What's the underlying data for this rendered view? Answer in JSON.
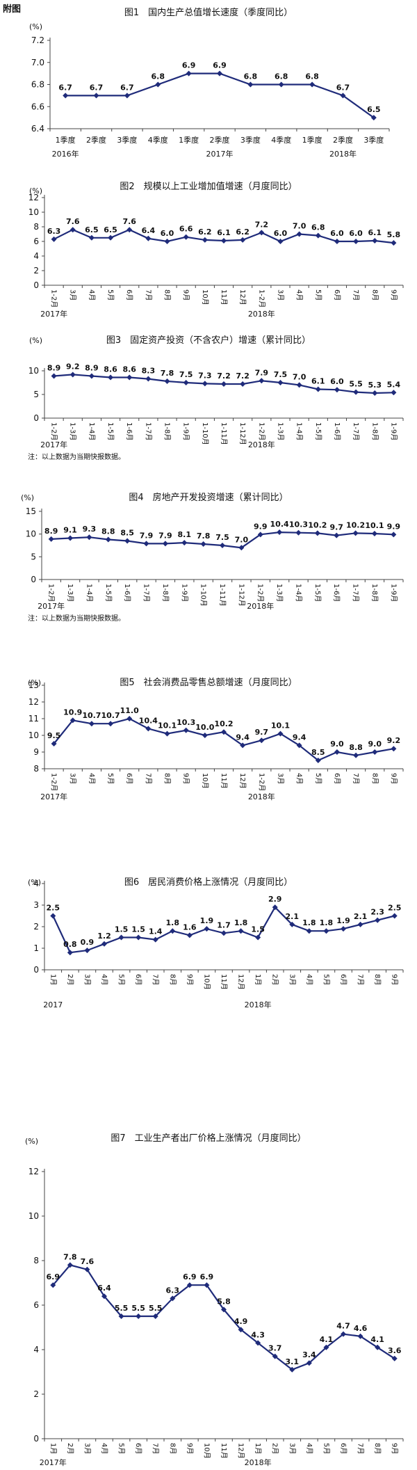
{
  "heading": "附图",
  "chart_data": [
    {
      "type": "line",
      "title": "图1　国内生产总值增长速度（季度同比）",
      "unit": "(%)",
      "categories": [
        "1季度",
        "2季度",
        "3季度",
        "4季度",
        "1季度",
        "2季度",
        "3季度",
        "4季度",
        "1季度",
        "2季度",
        "3季度"
      ],
      "x_tick_orientation": "horizontal",
      "years": [
        {
          "label": "2016年",
          "index": 0
        },
        {
          "label": "2017年",
          "index": 5
        },
        {
          "label": "2018年",
          "index": 9
        }
      ],
      "series": [
        {
          "values": [
            6.7,
            6.7,
            6.7,
            6.8,
            6.9,
            6.9,
            6.8,
            6.8,
            6.8,
            6.7,
            6.5
          ]
        }
      ],
      "value_labels": [
        "6.7",
        "6.7",
        "6.7",
        "6.8",
        "6.9",
        "6.9",
        "6.8",
        "6.8",
        "6.8",
        "6.7",
        "6.5"
      ],
      "ylim": [
        6.4,
        7.2
      ],
      "yticks": [
        "6.4",
        "6.6",
        "6.8",
        "7.0",
        "7.2"
      ],
      "marker": "diamond",
      "color": "#1f2b7a",
      "note": ""
    },
    {
      "type": "line",
      "title": "图2　规模以上工业增加值增速（月度同比）",
      "unit": "(%)",
      "categories": [
        "1-2月",
        "3月",
        "4月",
        "5月",
        "6月",
        "7月",
        "8月",
        "9月",
        "10月",
        "11月",
        "12月",
        "1-2月",
        "3月",
        "4月",
        "5月",
        "6月",
        "7月",
        "8月",
        "9月"
      ],
      "x_tick_orientation": "vertical",
      "years": [
        {
          "label": "2017年",
          "index": 0
        },
        {
          "label": "2018年",
          "index": 11
        }
      ],
      "series": [
        {
          "values": [
            6.3,
            7.6,
            6.5,
            6.5,
            7.6,
            6.4,
            6.0,
            6.6,
            6.2,
            6.1,
            6.2,
            7.2,
            6.0,
            7.0,
            6.8,
            6.0,
            6.0,
            6.1,
            5.8
          ]
        }
      ],
      "value_labels": [
        "6.3",
        "7.6",
        "6.5",
        "6.5",
        "7.6",
        "6.4",
        "6.0",
        "6.6",
        "6.2",
        "6.1",
        "6.2",
        "7.2",
        "6.0",
        "7.0",
        "6.8",
        "6.0",
        "6.0",
        "6.1",
        "5.8"
      ],
      "ylim": [
        0,
        12
      ],
      "yticks": [
        "0",
        "2",
        "4",
        "6",
        "8",
        "10",
        "12"
      ],
      "marker": "diamond",
      "color": "#1f2b7a",
      "note": ""
    },
    {
      "type": "line",
      "title": "图3　固定资产投资（不含农户）增速（累计同比）",
      "unit": "(%)",
      "categories": [
        "1-2月",
        "1-3月",
        "1-4月",
        "1-5月",
        "1-6月",
        "1-7月",
        "1-8月",
        "1-9月",
        "1-10月",
        "1-11月",
        "1-12月",
        "1-2月",
        "1-3月",
        "1-4月",
        "1-5月",
        "1-6月",
        "1-7月",
        "1-8月",
        "1-9月"
      ],
      "x_tick_orientation": "vertical",
      "years": [
        {
          "label": "2017年",
          "index": 0
        },
        {
          "label": "2018年",
          "index": 11
        }
      ],
      "series": [
        {
          "values": [
            8.9,
            9.2,
            8.9,
            8.6,
            8.6,
            8.3,
            7.8,
            7.5,
            7.3,
            7.2,
            7.2,
            7.9,
            7.5,
            7.0,
            6.1,
            6.0,
            5.5,
            5.3,
            5.4
          ]
        }
      ],
      "value_labels": [
        "8.9",
        "9.2",
        "8.9",
        "8.6",
        "8.6",
        "8.3",
        "7.8",
        "7.5",
        "7.3",
        "7.2",
        "7.2",
        "7.9",
        "7.5",
        "7.0",
        "6.1",
        "6.0",
        "5.5",
        "5.3",
        "5.4"
      ],
      "ylim": [
        0,
        10
      ],
      "yticks": [
        "0",
        "5",
        "10"
      ],
      "marker": "diamond",
      "color": "#1f2b7a",
      "note": "注：以上数据为当期快报数据。"
    },
    {
      "type": "line",
      "title": "图4　房地产开发投资增速（累计同比）",
      "unit": "(%)",
      "categories": [
        "1-2月",
        "1-3月",
        "1-4月",
        "1-5月",
        "1-6月",
        "1-7月",
        "1-8月",
        "1-9月",
        "1-10月",
        "1-11月",
        "1-12月",
        "1-2月",
        "1-3月",
        "1-4月",
        "1-5月",
        "1-6月",
        "1-7月",
        "1-8月",
        "1-9月"
      ],
      "x_tick_orientation": "vertical",
      "years": [
        {
          "label": "2017年",
          "index": 0
        },
        {
          "label": "2018年",
          "index": 11
        }
      ],
      "series": [
        {
          "values": [
            8.9,
            9.1,
            9.3,
            8.8,
            8.5,
            7.9,
            7.9,
            8.1,
            7.8,
            7.5,
            7.0,
            9.9,
            10.4,
            10.3,
            10.2,
            9.7,
            10.2,
            10.1,
            9.9
          ]
        }
      ],
      "value_labels": [
        "8.9",
        "9.1",
        "9.3",
        "8.8",
        "8.5",
        "7.9",
        "7.9",
        "8.1",
        "7.8",
        "7.5",
        "7.0",
        "9.9",
        "10.4",
        "10.3",
        "10.2",
        "9.7",
        "10.2",
        "10.1",
        "9.9"
      ],
      "ylim": [
        0,
        15
      ],
      "yticks": [
        "0",
        "5",
        "10",
        "15"
      ],
      "marker": "diamond",
      "color": "#1f2b7a",
      "note": "注：以上数据为当期快报数据。"
    },
    {
      "type": "line",
      "title": "图5　社会消费品零售总额增速（月度同比）",
      "unit": "(%)",
      "categories": [
        "1-2月",
        "3月",
        "4月",
        "5月",
        "6月",
        "7月",
        "8月",
        "9月",
        "10月",
        "11月",
        "12月",
        "1-2月",
        "3月",
        "4月",
        "5月",
        "6月",
        "7月",
        "8月",
        "9月"
      ],
      "x_tick_orientation": "vertical",
      "years": [
        {
          "label": "2017年",
          "index": 0
        },
        {
          "label": "2018年",
          "index": 11
        }
      ],
      "series": [
        {
          "values": [
            9.5,
            10.9,
            10.7,
            10.7,
            11.0,
            10.4,
            10.1,
            10.3,
            10.0,
            10.2,
            9.4,
            9.7,
            10.1,
            9.4,
            8.5,
            9.0,
            8.8,
            9.0,
            9.2
          ]
        }
      ],
      "value_labels": [
        "9.5",
        "10.9",
        "10.7",
        "10.7",
        "11.0",
        "10.4",
        "10.1",
        "10.3",
        "10.0",
        "10.2",
        "9.4",
        "9.7",
        "10.1",
        "9.4",
        "8.5",
        "9.0",
        "8.8",
        "9.0",
        "9.2"
      ],
      "ylim": [
        8,
        13
      ],
      "yticks": [
        "8",
        "9",
        "10",
        "11",
        "12",
        "13"
      ],
      "marker": "diamond",
      "color": "#1f2b7a",
      "note": ""
    },
    {
      "type": "line",
      "title": "图6　居民消费价格上涨情况（月度同比）",
      "unit": "(%)",
      "categories": [
        "1月",
        "2月",
        "3月",
        "4月",
        "5月",
        "6月",
        "7月",
        "8月",
        "9月",
        "10月",
        "11月",
        "12月",
        "1月",
        "2月",
        "3月",
        "4月",
        "5月",
        "6月",
        "7月",
        "8月",
        "9月"
      ],
      "x_tick_orientation": "vertical",
      "years": [
        {
          "label": "2017",
          "index": 0
        },
        {
          "label": "2018年",
          "index": 12
        }
      ],
      "series": [
        {
          "values": [
            2.5,
            0.8,
            0.9,
            1.2,
            1.5,
            1.5,
            1.4,
            1.8,
            1.6,
            1.9,
            1.7,
            1.8,
            1.5,
            2.9,
            2.1,
            1.8,
            1.8,
            1.9,
            2.1,
            2.3,
            2.5
          ]
        }
      ],
      "value_labels": [
        "2.5",
        "0.8",
        "0.9",
        "1.2",
        "1.5",
        "1.5",
        "1.4",
        "1.8",
        "1.6",
        "1.9",
        "1.7",
        "1.8",
        "1.5",
        "2.9",
        "2.1",
        "1.8",
        "1.8",
        "1.9",
        "2.1",
        "2.3",
        "2.5"
      ],
      "ylim": [
        0,
        4
      ],
      "yticks": [
        "0",
        "1",
        "2",
        "3",
        "4"
      ],
      "marker": "diamond",
      "color": "#1f2b7a",
      "note": ""
    },
    {
      "type": "line",
      "title": "图7　工业生产者出厂价格上涨情况（月度同比）",
      "unit": "(%)",
      "categories": [
        "1月",
        "2月",
        "3月",
        "4月",
        "5月",
        "6月",
        "7月",
        "8月",
        "9月",
        "10月",
        "11月",
        "12月",
        "1月",
        "2月",
        "3月",
        "4月",
        "5月",
        "6月",
        "7月",
        "8月",
        "9月"
      ],
      "x_tick_orientation": "vertical",
      "years": [
        {
          "label": "2017年",
          "index": 0
        },
        {
          "label": "2018年",
          "index": 12
        }
      ],
      "series": [
        {
          "values": [
            6.9,
            7.8,
            7.6,
            6.4,
            5.5,
            5.5,
            5.5,
            6.3,
            6.9,
            6.9,
            5.8,
            4.9,
            4.3,
            3.7,
            3.1,
            3.4,
            4.1,
            4.7,
            4.6,
            4.1,
            3.6
          ]
        }
      ],
      "value_labels": [
        "6.9",
        "7.8",
        "7.6",
        "6.4",
        "5.5",
        "5.5",
        "5.5",
        "6.3",
        "6.9",
        "6.9",
        "5.8",
        "4.9",
        "4.3",
        "3.7",
        "3.1",
        "3.4",
        "4.1",
        "4.7",
        "4.6",
        "4.1",
        "3.6"
      ],
      "ylim": [
        0,
        12
      ],
      "yticks": [
        "0",
        "2",
        "4",
        "6",
        "8",
        "10",
        "12"
      ],
      "marker": "diamond",
      "color": "#1f2b7a",
      "note": ""
    }
  ]
}
